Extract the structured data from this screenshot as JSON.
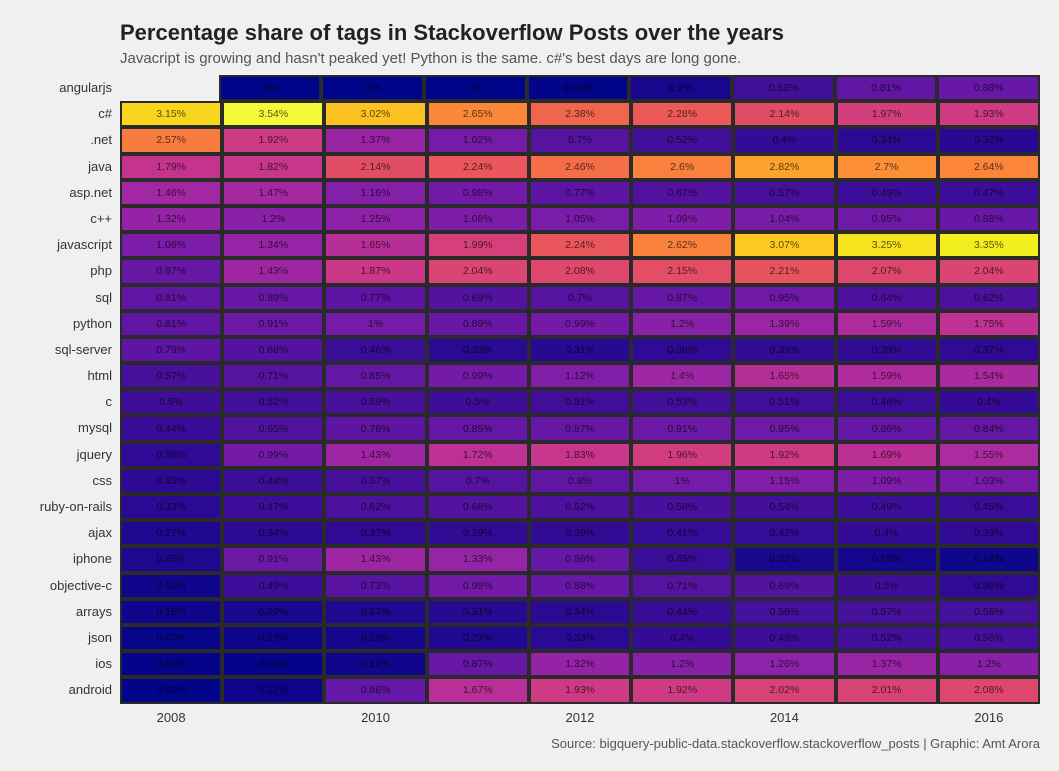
{
  "title": "Percentage share of tags in Stackoverflow Posts over the years",
  "subtitle": "Javacript is growing and hasn't peaked yet! Python is the same. c#'s best days are long gone.",
  "source": "Source: bigquery-public-data.stackoverflow.stackoverflow_posts | Graphic: Amt Arora",
  "background_color": "#f0f0f0",
  "cell_border_color": "#2a2a2a",
  "title_fontsize": 22,
  "subtitle_fontsize": 15,
  "label_fontsize": 13,
  "cell_fontsize": 10.5,
  "heatmap": {
    "type": "heatmap",
    "colorscale": "viridis-like (navy→purple→magenta→orange→yellow)",
    "value_min": 0.0,
    "value_max": 3.54,
    "cell_text_color": "rgba(0,0,0,0.65)",
    "years": [
      2008,
      2009,
      2010,
      2011,
      2012,
      2013,
      2014,
      2015,
      2016
    ],
    "x_tick_labels": [
      "2008",
      "",
      "2010",
      "",
      "2012",
      "",
      "2014",
      "",
      "2016"
    ],
    "tags": [
      "angularjs",
      "c#",
      ".net",
      "java",
      "asp.net",
      "c++",
      "javascript",
      "php",
      "sql",
      "python",
      "sql-server",
      "html",
      "c",
      "mysql",
      "jquery",
      "css",
      "ruby-on-rails",
      "ajax",
      "iphone",
      "objective-c",
      "arrays",
      "json",
      "ios",
      "android"
    ],
    "values": [
      [
        null,
        0,
        0,
        0,
        0.02,
        0.2,
        0.53,
        0.81,
        0.88
      ],
      [
        3.15,
        3.54,
        3.02,
        2.65,
        2.38,
        2.28,
        2.14,
        1.97,
        1.93
      ],
      [
        2.57,
        1.92,
        1.37,
        1.02,
        0.7,
        0.52,
        0.4,
        0.34,
        0.32
      ],
      [
        1.79,
        1.82,
        2.14,
        2.24,
        2.46,
        2.6,
        2.82,
        2.7,
        2.64
      ],
      [
        1.46,
        1.47,
        1.16,
        0.98,
        0.77,
        0.67,
        0.57,
        0.49,
        0.47
      ],
      [
        1.32,
        1.2,
        1.25,
        1.08,
        1.05,
        1.09,
        1.04,
        0.95,
        0.88
      ],
      [
        1.06,
        1.34,
        1.65,
        1.99,
        2.24,
        2.62,
        3.07,
        3.25,
        3.35
      ],
      [
        0.87,
        1.43,
        1.87,
        2.04,
        2.08,
        2.15,
        2.21,
        2.07,
        2.04
      ],
      [
        0.81,
        0.89,
        0.77,
        0.69,
        0.7,
        0.87,
        0.95,
        0.64,
        0.62
      ],
      [
        0.81,
        0.91,
        1,
        0.89,
        0.99,
        1.2,
        1.39,
        1.59,
        1.75
      ],
      [
        0.79,
        0.68,
        0.46,
        0.33,
        0.31,
        0.36,
        0.39,
        0.39,
        0.37
      ],
      [
        0.57,
        0.71,
        0.85,
        0.99,
        1.12,
        1.4,
        1.65,
        1.59,
        1.54
      ],
      [
        0.5,
        0.52,
        0.59,
        0.5,
        0.51,
        0.53,
        0.51,
        0.46,
        0.4
      ],
      [
        0.44,
        0.65,
        0.78,
        0.85,
        0.87,
        0.91,
        0.95,
        0.86,
        0.84
      ],
      [
        0.36,
        0.99,
        1.43,
        1.72,
        1.83,
        1.96,
        1.92,
        1.69,
        1.55
      ],
      [
        0.35,
        0.48,
        0.57,
        0.7,
        0.8,
        1,
        1.15,
        1.09,
        1.03
      ],
      [
        0.33,
        0.47,
        0.62,
        0.68,
        0.62,
        0.58,
        0.54,
        0.49,
        0.45
      ],
      [
        0.27,
        0.34,
        0.37,
        0.39,
        0.39,
        0.41,
        0.42,
        0.4,
        0.39
      ],
      [
        0.25,
        0.91,
        1.43,
        1.33,
        0.86,
        0.45,
        0.22,
        0.19,
        0.14
      ],
      [
        0.16,
        0.49,
        0.73,
        0.98,
        0.88,
        0.71,
        0.69,
        0.5,
        0.36
      ],
      [
        0.15,
        0.22,
        0.27,
        0.31,
        0.34,
        0.44,
        0.56,
        0.57,
        0.56
      ],
      [
        0.07,
        0.13,
        0.19,
        0.27,
        0.33,
        0.4,
        0.48,
        0.52,
        0.56
      ],
      [
        0.04,
        0.04,
        0.16,
        0.87,
        1.32,
        1.2,
        1.26,
        1.37,
        1.2
      ],
      [
        0.02,
        0.12,
        0.86,
        1.67,
        1.93,
        1.92,
        2.02,
        2.01,
        2.08
      ]
    ],
    "color_stops": [
      {
        "t": 0.0,
        "hex": "#000489"
      },
      {
        "t": 0.05,
        "hex": "#12068c"
      },
      {
        "t": 0.1,
        "hex": "#2e0a94"
      },
      {
        "t": 0.15,
        "hex": "#420f9a"
      },
      {
        "t": 0.2,
        "hex": "#5613a0"
      },
      {
        "t": 0.25,
        "hex": "#6818a6"
      },
      {
        "t": 0.3,
        "hex": "#7a1ca8"
      },
      {
        "t": 0.35,
        "hex": "#8c21a8"
      },
      {
        "t": 0.4,
        "hex": "#9e26a4"
      },
      {
        "t": 0.45,
        "hex": "#b02c9c"
      },
      {
        "t": 0.5,
        "hex": "#c23390"
      },
      {
        "t": 0.55,
        "hex": "#d03c80"
      },
      {
        "t": 0.58,
        "hex": "#dc4670"
      },
      {
        "t": 0.62,
        "hex": "#e65260"
      },
      {
        "t": 0.66,
        "hex": "#ee6052"
      },
      {
        "t": 0.7,
        "hex": "#f57046"
      },
      {
        "t": 0.74,
        "hex": "#fa823c"
      },
      {
        "t": 0.78,
        "hex": "#fd9832"
      },
      {
        "t": 0.82,
        "hex": "#feae2a"
      },
      {
        "t": 0.86,
        "hex": "#fdc522"
      },
      {
        "t": 0.9,
        "hex": "#f8dc1c"
      },
      {
        "t": 0.95,
        "hex": "#f2ef20"
      },
      {
        "t": 1.0,
        "hex": "#f5f938"
      }
    ]
  }
}
